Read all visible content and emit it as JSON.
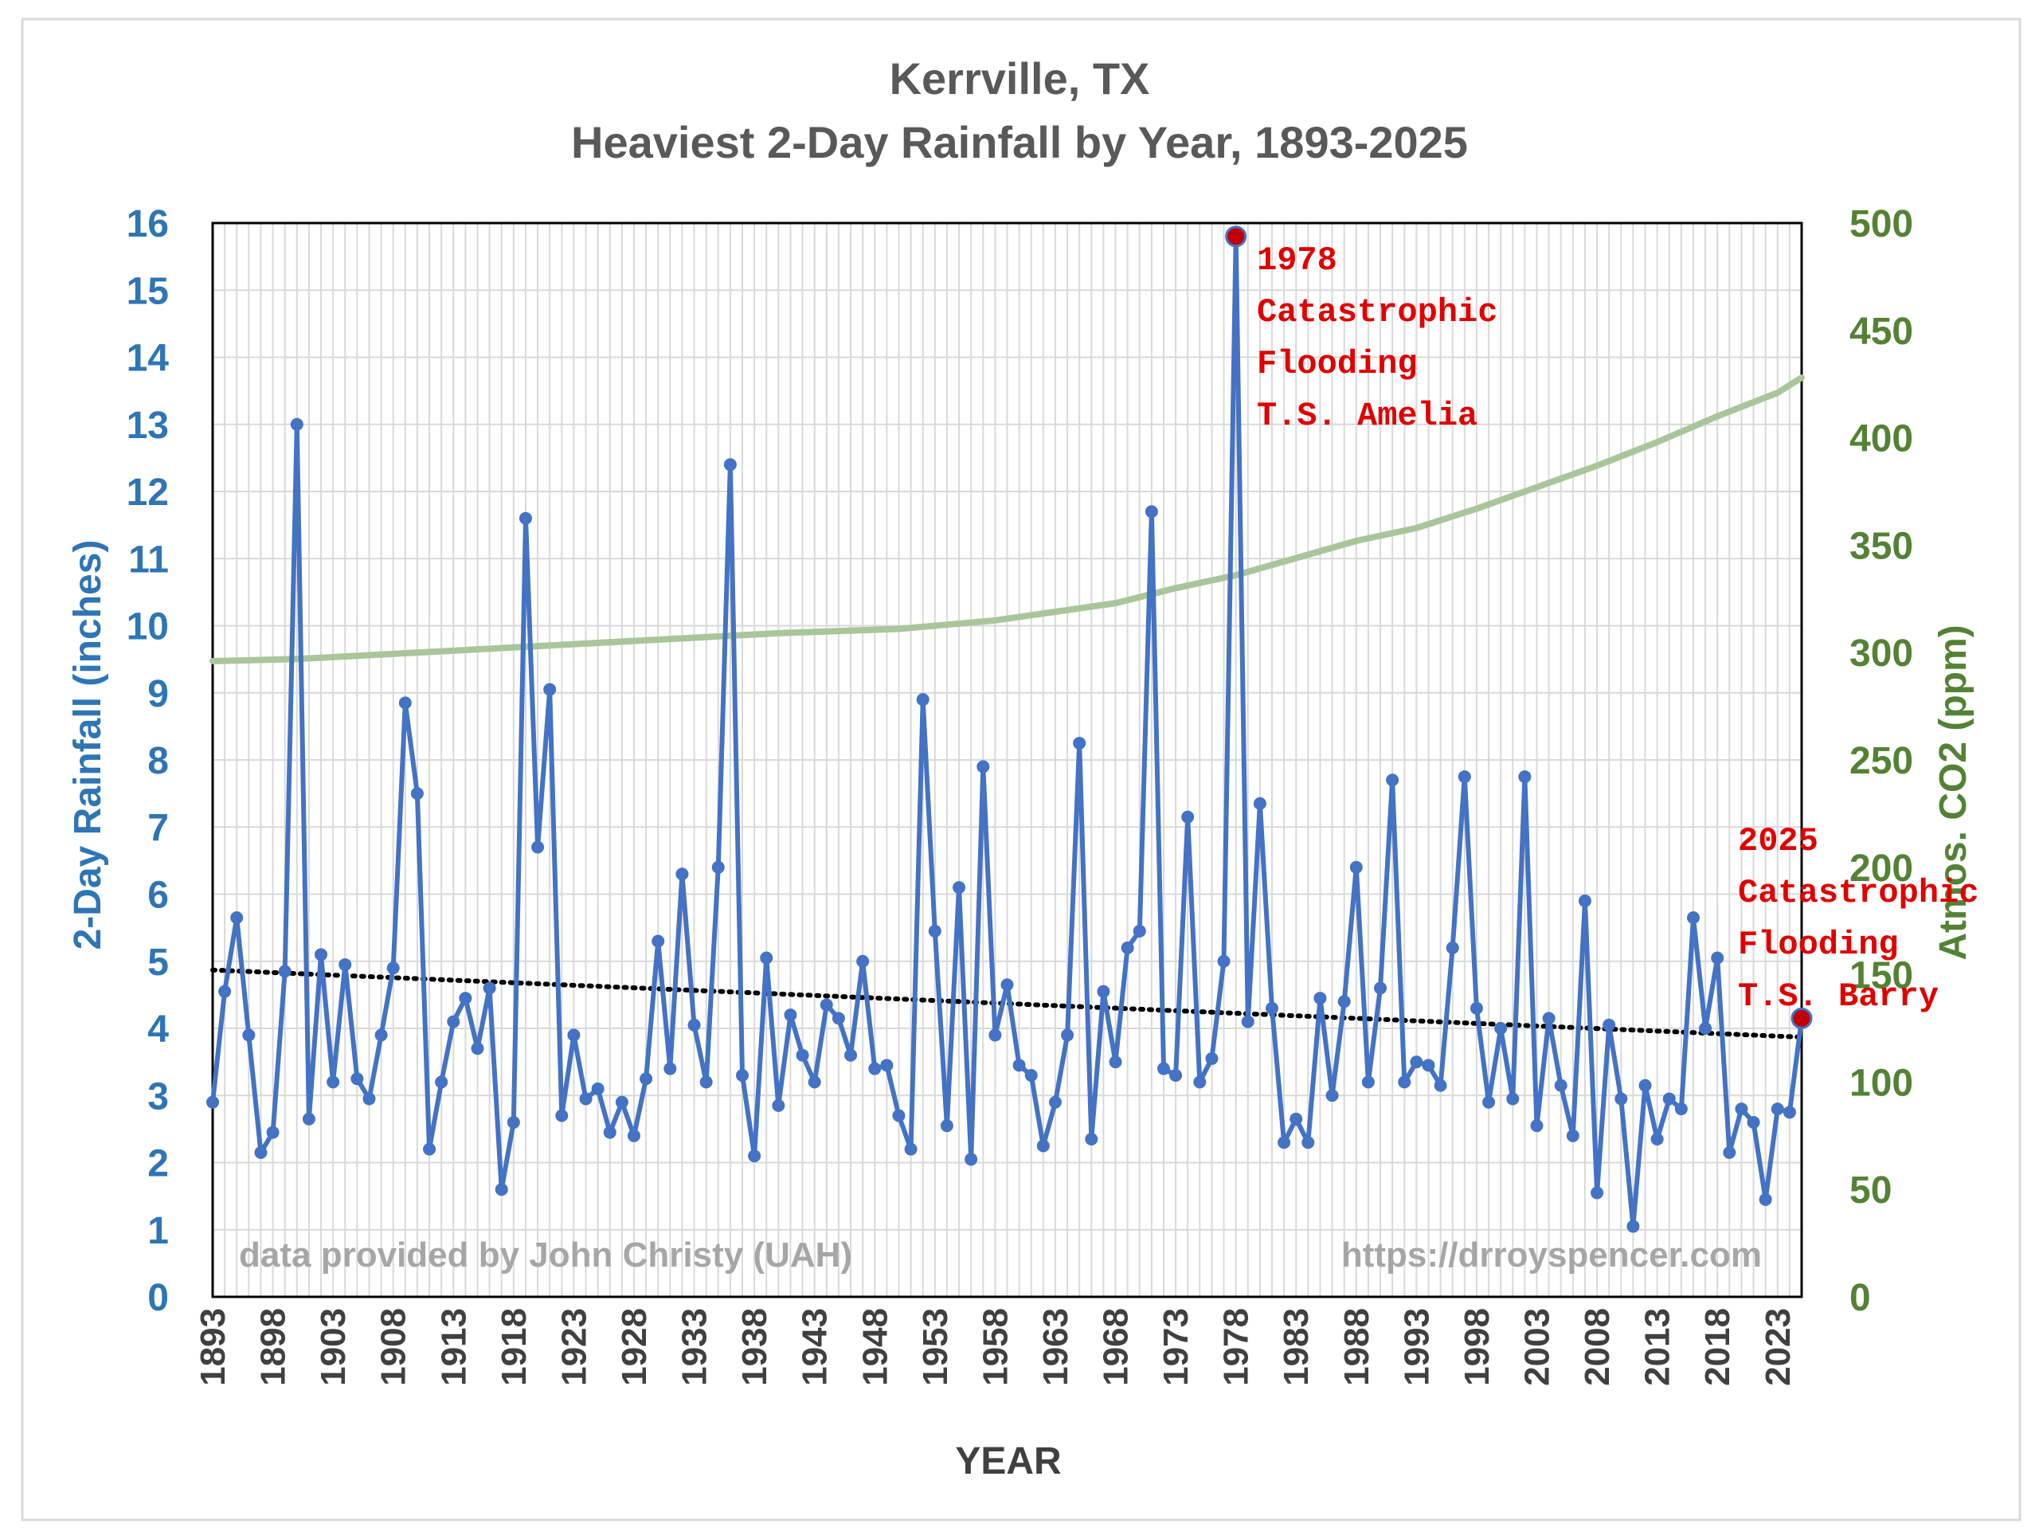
{
  "chart_data": {
    "type": "line",
    "title_lines": [
      "Kerrville, TX",
      "Heaviest 2-Day Rainfall by Year, 1893-2025"
    ],
    "xlabel": "YEAR",
    "ylabel_left": "2-Day Rainfall (inches)",
    "ylabel_right": "Atmos. CO2 (ppm)",
    "x_range": [
      1893,
      2025
    ],
    "y_left_range": [
      0,
      16
    ],
    "y_right_range": [
      0,
      500
    ],
    "x_ticks": [
      "1893",
      "1898",
      "1903",
      "1908",
      "1913",
      "1918",
      "1923",
      "1928",
      "1933",
      "1938",
      "1943",
      "1948",
      "1953",
      "1958",
      "1963",
      "1968",
      "1973",
      "1978",
      "1983",
      "1988",
      "1993",
      "1998",
      "2003",
      "2008",
      "2013",
      "2018",
      "2023"
    ],
    "y_left_ticks": [
      "0",
      "1",
      "2",
      "3",
      "4",
      "5",
      "6",
      "7",
      "8",
      "9",
      "10",
      "11",
      "12",
      "13",
      "14",
      "15",
      "16"
    ],
    "y_right_ticks": [
      "0",
      "50",
      "100",
      "150",
      "200",
      "250",
      "300",
      "350",
      "400",
      "450",
      "500"
    ],
    "grid": true,
    "series": [
      {
        "axis": "left",
        "color": "#4472C4",
        "x": [
          1893,
          1894,
          1895,
          1896,
          1897,
          1898,
          1899,
          1900,
          1901,
          1902,
          1903,
          1904,
          1905,
          1906,
          1907,
          1908,
          1909,
          1910,
          1911,
          1912,
          1913,
          1914,
          1915,
          1916,
          1917,
          1918,
          1919,
          1920,
          1921,
          1922,
          1923,
          1924,
          1925,
          1926,
          1927,
          1928,
          1929,
          1930,
          1931,
          1932,
          1933,
          1934,
          1935,
          1936,
          1937,
          1938,
          1939,
          1940,
          1941,
          1942,
          1943,
          1944,
          1945,
          1946,
          1947,
          1948,
          1949,
          1950,
          1951,
          1952,
          1953,
          1954,
          1955,
          1956,
          1957,
          1958,
          1959,
          1960,
          1961,
          1962,
          1963,
          1964,
          1965,
          1966,
          1967,
          1968,
          1969,
          1970,
          1971,
          1972,
          1973,
          1974,
          1975,
          1976,
          1977,
          1978,
          1979,
          1980,
          1981,
          1982,
          1983,
          1984,
          1985,
          1986,
          1987,
          1988,
          1989,
          1990,
          1991,
          1992,
          1993,
          1994,
          1995,
          1996,
          1997,
          1998,
          1999,
          2000,
          2001,
          2002,
          2003,
          2004,
          2005,
          2006,
          2007,
          2008,
          2009,
          2010,
          2011,
          2012,
          2013,
          2014,
          2015,
          2016,
          2017,
          2018,
          2019,
          2020,
          2021,
          2022,
          2023,
          2024,
          2025
        ],
        "values": [
          2.9,
          4.55,
          5.65,
          3.9,
          2.15,
          2.45,
          4.85,
          13.0,
          2.65,
          5.1,
          3.2,
          4.95,
          3.25,
          2.95,
          3.9,
          4.9,
          8.85,
          7.5,
          2.2,
          3.2,
          4.1,
          4.45,
          3.7,
          4.6,
          1.6,
          2.6,
          11.6,
          6.7,
          9.05,
          2.7,
          3.9,
          2.95,
          3.1,
          2.45,
          2.9,
          2.4,
          3.25,
          5.3,
          3.4,
          6.3,
          4.05,
          3.2,
          6.4,
          12.4,
          3.3,
          2.1,
          5.05,
          2.85,
          4.2,
          3.6,
          3.2,
          4.35,
          4.15,
          3.6,
          5.0,
          3.4,
          3.45,
          2.7,
          2.2,
          8.9,
          5.45,
          2.55,
          6.1,
          2.05,
          7.9,
          3.9,
          4.65,
          3.45,
          3.3,
          2.25,
          2.9,
          3.9,
          8.25,
          2.35,
          4.55,
          3.5,
          5.2,
          5.45,
          11.7,
          3.4,
          3.3,
          7.15,
          3.2,
          3.55,
          5.0,
          15.8,
          4.1,
          7.35,
          4.3,
          2.3,
          2.65,
          2.3,
          4.45,
          3.0,
          4.4,
          6.4,
          3.2,
          4.6,
          7.7,
          3.2,
          3.5,
          3.45,
          3.15,
          5.2,
          7.75,
          4.3,
          2.9,
          4.0,
          2.95,
          7.75,
          2.55,
          4.15,
          3.15,
          2.4,
          5.9,
          1.55,
          4.05,
          2.95,
          1.05,
          3.15,
          2.35,
          2.95,
          2.8,
          5.65,
          4.0,
          5.05,
          2.15,
          2.8,
          2.6,
          1.45,
          2.8,
          2.75,
          4.15
        ]
      },
      {
        "axis": "left",
        "style": "dotted trend",
        "color": "#000000",
        "x": [
          1893,
          2025
        ],
        "values": [
          4.87,
          3.87
        ]
      },
      {
        "axis": "right",
        "color": "#A9C69B",
        "x": [
          1893,
          1900,
          1910,
          1920,
          1930,
          1940,
          1950,
          1958,
          1963,
          1968,
          1973,
          1978,
          1983,
          1988,
          1993,
          1998,
          2003,
          2008,
          2013,
          2018,
          2023,
          2025
        ],
        "values": [
          296,
          297,
          300,
          303,
          306,
          309,
          311,
          315,
          319,
          323,
          330,
          336,
          344,
          352,
          358,
          367,
          377,
          387,
          398,
          410,
          421,
          428
        ]
      }
    ],
    "highlighted_points": [
      {
        "x": 1978,
        "value": 15.8,
        "color": "#C00000"
      },
      {
        "x": 2025,
        "value": 4.15,
        "color": "#C00000"
      }
    ],
    "annotations": [
      {
        "id": "a1978",
        "lines": [
          "1978",
          "Catastrophic",
          "Flooding",
          "T.S. Amelia"
        ]
      },
      {
        "id": "a2025",
        "lines": [
          "2025",
          "Catastrophic",
          "Flooding",
          "T.S. Barry"
        ]
      }
    ],
    "credits": {
      "left": "data provided by John Christy (UAH)",
      "right": "https://drroyspencer.com"
    }
  }
}
